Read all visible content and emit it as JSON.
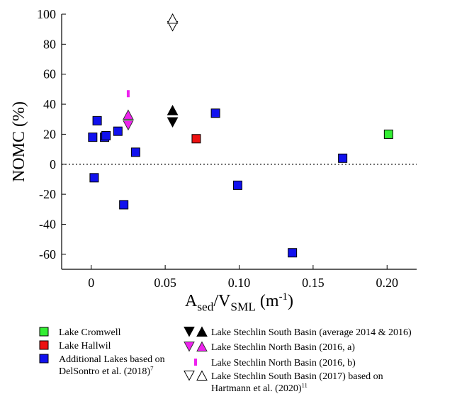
{
  "chart_data": {
    "type": "scatter",
    "ylabel": "NOMC (%)",
    "xlabel": {
      "parts": [
        {
          "text": "A",
          "style": "normal"
        },
        {
          "text": "sed",
          "style": "sub"
        },
        {
          "text": "/V",
          "style": "normal"
        },
        {
          "text": "SML",
          "style": "sub"
        },
        {
          "text": " (m",
          "style": "normal"
        },
        {
          "text": "-1",
          "style": "sup"
        },
        {
          "text": ")",
          "style": "normal"
        }
      ]
    },
    "xlim": [
      -0.02,
      0.22
    ],
    "ylim": [
      -70,
      100
    ],
    "xticks": [
      0,
      0.05,
      0.1,
      0.15,
      0.2
    ],
    "xtick_labels": [
      "0",
      "0.05",
      "0.10",
      "0.15",
      "0.20"
    ],
    "yticks": [
      -60,
      -40,
      -20,
      0,
      20,
      40,
      60,
      80,
      100
    ],
    "ytick_labels": [
      "-60",
      "-40",
      "-20",
      "0",
      "20",
      "40",
      "60",
      "80",
      "100"
    ],
    "reference_line": {
      "y": 0,
      "style": "dotted"
    },
    "series": [
      {
        "id": "cromwell",
        "name": "Lake Cromwell",
        "marker": "square",
        "color": "#33ee33",
        "points": [
          [
            0.201,
            20
          ]
        ]
      },
      {
        "id": "hallwil",
        "name": "Lake Hallwil",
        "marker": "square",
        "color": "#ee1111",
        "points": [
          [
            0.071,
            17
          ]
        ]
      },
      {
        "id": "additional",
        "name": "Additional Lakes based on DelSontro et al. (2018)^7",
        "marker": "square",
        "color": "#1111ee",
        "points": [
          [
            0.001,
            18
          ],
          [
            0.002,
            -9
          ],
          [
            0.004,
            29
          ],
          [
            0.009,
            18
          ],
          [
            0.01,
            19
          ],
          [
            0.018,
            22
          ],
          [
            0.022,
            -27
          ],
          [
            0.03,
            8
          ],
          [
            0.084,
            34
          ],
          [
            0.099,
            -14
          ],
          [
            0.136,
            -59
          ],
          [
            0.17,
            4
          ]
        ]
      },
      {
        "id": "south-avg",
        "name": "Lake Stechlin South Basin (average 2014 & 2016)",
        "marker": "triangle-pair",
        "color": "#000000",
        "filled": true,
        "points": [
          [
            0.055,
            28,
            "down"
          ],
          [
            0.055,
            36,
            "up"
          ]
        ]
      },
      {
        "id": "north-a",
        "name": "Lake Stechlin North Basin (2016, a)",
        "marker": "triangle-pair",
        "color": "#ee22ee",
        "filled": true,
        "points": [
          [
            0.025,
            26,
            "down"
          ],
          [
            0.025,
            33,
            "up"
          ]
        ]
      },
      {
        "id": "north-b",
        "name": "Lake Stechlin North Basin (2016, b)",
        "marker": "bar",
        "color": "#ee22ee",
        "points": [
          [
            0.025,
            47
          ]
        ]
      },
      {
        "id": "south-2017",
        "name": "Lake Stechlin South Basin (2017) based on Hartmann et al. (2020)^11",
        "marker": "triangle-pair",
        "color": "#ffffff",
        "filled": false,
        "points": [
          [
            0.055,
            92,
            "down"
          ],
          [
            0.055,
            97,
            "up"
          ]
        ]
      }
    ],
    "legend": {
      "placement": "bottom",
      "left": [
        {
          "series": "cromwell",
          "lines": [
            [
              {
                "text": "Lake Cromwell"
              }
            ]
          ]
        },
        {
          "series": "hallwil",
          "lines": [
            [
              {
                "text": "Lake Hallwil"
              }
            ]
          ]
        },
        {
          "series": "additional",
          "lines": [
            [
              {
                "text": "Additional Lakes based on"
              }
            ],
            [
              {
                "text": "DelSontro et al. (2018)"
              },
              {
                "text": "7",
                "style": "sup"
              }
            ]
          ]
        }
      ],
      "right": [
        {
          "series": "south-avg",
          "lines": [
            [
              {
                "text": "Lake Stechlin South Basin (average 2014 & 2016)"
              }
            ]
          ]
        },
        {
          "series": "north-a",
          "lines": [
            [
              {
                "text": "Lake Stechlin North Basin (2016, a)"
              }
            ]
          ]
        },
        {
          "series": "north-b",
          "lines": [
            [
              {
                "text": "Lake Stechlin North Basin (2016, b)"
              }
            ]
          ]
        },
        {
          "series": "south-2017",
          "lines": [
            [
              {
                "text": "Lake Stechlin South Basin (2017) based on"
              }
            ],
            [
              {
                "text": "Hartmann et al. (2020)"
              },
              {
                "text": "11",
                "style": "sup"
              }
            ]
          ]
        }
      ]
    }
  }
}
